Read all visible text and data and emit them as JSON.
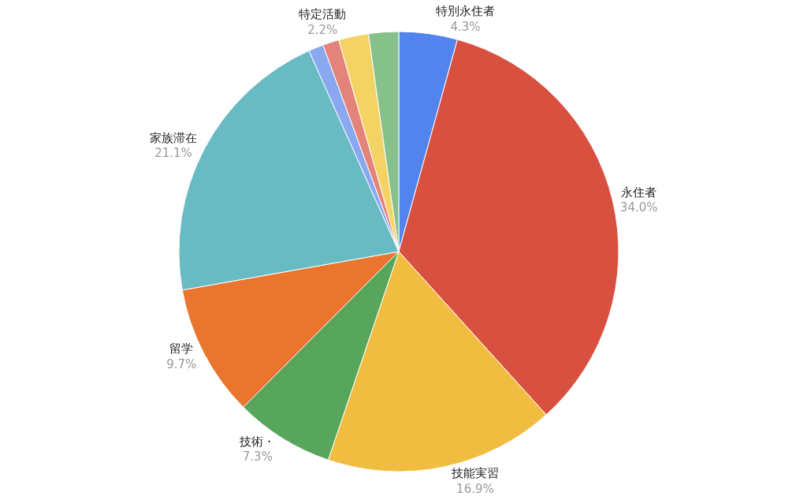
{
  "chart_data": {
    "type": "pie",
    "categories": [
      "特別永住者",
      "永住者",
      "技能実習",
      "技術・",
      "留学",
      "家族滞在",
      null,
      null,
      "特定活動",
      null
    ],
    "values": [
      4.3,
      34.0,
      16.9,
      7.3,
      9.7,
      21.1,
      1.1,
      1.2,
      2.2,
      2.2
    ],
    "value_labels": [
      "4.3%",
      "34.0%",
      "16.9%",
      "7.3%",
      "9.7%",
      "21.1%",
      null,
      null,
      "2.2%",
      null
    ],
    "colors": [
      "#5384ee",
      "#d85140",
      "#f0bd40",
      "#58a55c",
      "#ea752f",
      "#68bac3",
      "#8aa8f0",
      "#e3837a",
      "#f4d365",
      "#86c18b"
    ],
    "legend": false
  }
}
